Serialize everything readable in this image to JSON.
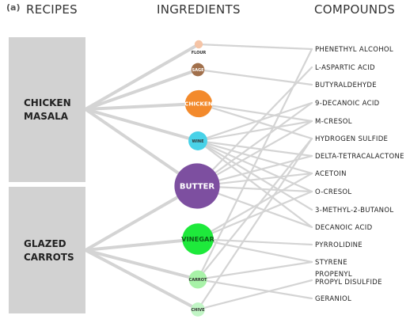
{
  "panel_label": "(a)",
  "headers": {
    "recipes": "RECIPES",
    "ingredients": "INGREDIENTS",
    "compounds": "COMPOUNDS"
  },
  "recipes": [
    {
      "id": "chicken_masala",
      "lines": [
        "CHICKEN",
        "MASALA"
      ]
    },
    {
      "id": "glazed_carrots",
      "lines": [
        "GLAZED",
        "CARROTS"
      ]
    }
  ],
  "ingredients": [
    {
      "id": "flour",
      "label": "FLOUR",
      "color": "#f5c4a6",
      "size": 1
    },
    {
      "id": "sage",
      "label": "SAGE",
      "color": "#a1704c",
      "size": 1.6
    },
    {
      "id": "chicken",
      "label": "CHICKEN",
      "color": "#f38a2c",
      "size": 3.3
    },
    {
      "id": "wine",
      "label": "WINE",
      "color": "#49d2e8",
      "size": 2.3
    },
    {
      "id": "butter",
      "label": "BUTTER",
      "color": "#7d4fa0",
      "size": 5.5
    },
    {
      "id": "vinegar",
      "label": "VINEGAR",
      "color": "#1ee93b",
      "size": 3.8
    },
    {
      "id": "carrot",
      "label": "CARROT",
      "color": "#a8f2a8",
      "size": 2.2
    },
    {
      "id": "chive",
      "label": "CHIVE",
      "color": "#c1f5c5",
      "size": 1.7
    }
  ],
  "compounds": [
    {
      "id": "c1",
      "lines": [
        "PHENETHYL ALCOHOL"
      ]
    },
    {
      "id": "c2",
      "lines": [
        "L-ASPARTIC ACID"
      ]
    },
    {
      "id": "c3",
      "lines": [
        "BUTYRALDEHYDE"
      ]
    },
    {
      "id": "c4",
      "lines": [
        "9-DECANOIC ACID"
      ]
    },
    {
      "id": "c5",
      "lines": [
        "M-CRESOL"
      ]
    },
    {
      "id": "c6",
      "lines": [
        "HYDROGEN SULFIDE"
      ]
    },
    {
      "id": "c7",
      "lines": [
        "DELTA-TETRACALACTONE"
      ]
    },
    {
      "id": "c8",
      "lines": [
        "ACETOIN"
      ]
    },
    {
      "id": "c9",
      "lines": [
        "O-CRESOL"
      ]
    },
    {
      "id": "c10",
      "lines": [
        "3-METHYL-2-BUTANOL"
      ]
    },
    {
      "id": "c11",
      "lines": [
        "DECANOIC ACID"
      ]
    },
    {
      "id": "c12",
      "lines": [
        "PYRROLIDINE"
      ]
    },
    {
      "id": "c13",
      "lines": [
        "STYRENE"
      ]
    },
    {
      "id": "c14",
      "lines": [
        "PROPENYL",
        "PROPYL DISULFIDE"
      ]
    },
    {
      "id": "c15",
      "lines": [
        "GERANIOL"
      ]
    }
  ],
  "recipe_links": [
    [
      "chicken_masala",
      "flour"
    ],
    [
      "chicken_masala",
      "sage"
    ],
    [
      "chicken_masala",
      "chicken"
    ],
    [
      "chicken_masala",
      "wine"
    ],
    [
      "chicken_masala",
      "butter"
    ],
    [
      "glazed_carrots",
      "butter"
    ],
    [
      "glazed_carrots",
      "vinegar"
    ],
    [
      "glazed_carrots",
      "carrot"
    ],
    [
      "glazed_carrots",
      "chive"
    ]
  ],
  "compound_links": [
    [
      "flour",
      "c1"
    ],
    [
      "sage",
      "c3"
    ],
    [
      "chicken",
      "c5"
    ],
    [
      "chicken",
      "c6"
    ],
    [
      "wine",
      "c4"
    ],
    [
      "wine",
      "c5"
    ],
    [
      "wine",
      "c7"
    ],
    [
      "wine",
      "c8"
    ],
    [
      "wine",
      "c9"
    ],
    [
      "wine",
      "c10"
    ],
    [
      "wine",
      "c11"
    ],
    [
      "butter",
      "c2"
    ],
    [
      "butter",
      "c4"
    ],
    [
      "butter",
      "c5"
    ],
    [
      "butter",
      "c7"
    ],
    [
      "butter",
      "c8"
    ],
    [
      "butter",
      "c9"
    ],
    [
      "butter",
      "c11"
    ],
    [
      "vinegar",
      "c8"
    ],
    [
      "vinegar",
      "c9"
    ],
    [
      "vinegar",
      "c12"
    ],
    [
      "vinegar",
      "c13"
    ],
    [
      "carrot",
      "c1"
    ],
    [
      "carrot",
      "c6"
    ],
    [
      "carrot",
      "c13"
    ],
    [
      "carrot",
      "c15"
    ],
    [
      "chive",
      "c6"
    ],
    [
      "chive",
      "c14"
    ]
  ]
}
